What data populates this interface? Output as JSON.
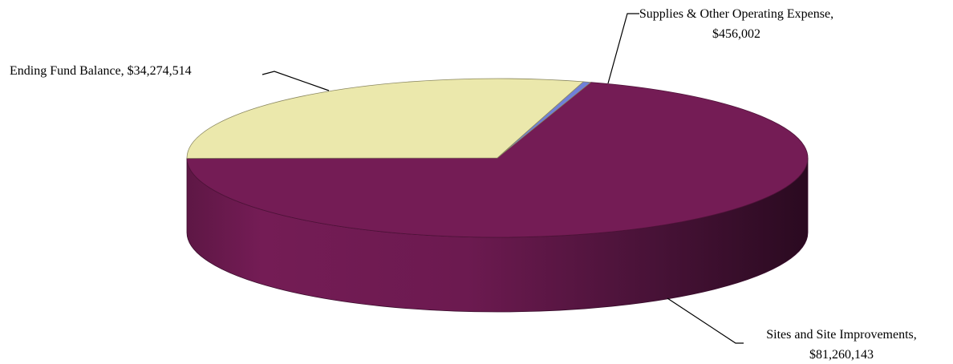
{
  "chart_data": {
    "type": "pie",
    "style": "3d",
    "legend": "none",
    "slices": [
      {
        "label": "Sites and Site Improvements",
        "value": 81260143,
        "value_label": "$81,260,143",
        "color": "#741c55"
      },
      {
        "label": "Ending Fund Balance",
        "value": 34274514,
        "value_label": "$34,274,514",
        "color": "#ebe8ac"
      },
      {
        "label": "Supplies & Other Operating Expense",
        "value": 456002,
        "value_label": "$456,002",
        "color": "#6f7fd9"
      }
    ]
  }
}
